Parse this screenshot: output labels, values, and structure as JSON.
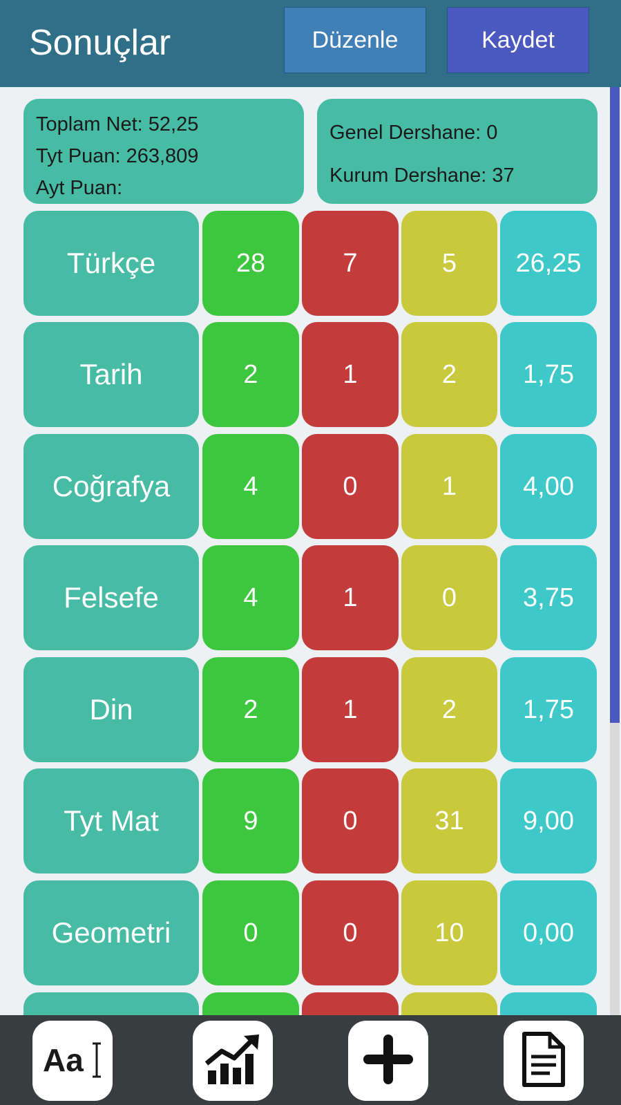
{
  "header": {
    "title": "Sonuçlar",
    "edit_label": "Düzenle",
    "save_label": "Kaydet"
  },
  "summary": {
    "toplam_net": "Toplam Net: 52,25",
    "tyt_puan": "Tyt Puan: 263,809",
    "ayt_puan": "Ayt Puan:",
    "genel_dershane": "Genel Dershane: 0",
    "kurum_dershane": "Kurum Dershane: 37"
  },
  "rows": [
    {
      "name": "Türkçe",
      "d": "28",
      "y": "7",
      "b": "5",
      "net": "26,25"
    },
    {
      "name": "Tarih",
      "d": "2",
      "y": "1",
      "b": "2",
      "net": "1,75"
    },
    {
      "name": "Coğrafya",
      "d": "4",
      "y": "0",
      "b": "1",
      "net": "4,00"
    },
    {
      "name": "Felsefe",
      "d": "4",
      "y": "1",
      "b": "0",
      "net": "3,75"
    },
    {
      "name": "Din",
      "d": "2",
      "y": "1",
      "b": "2",
      "net": "1,75"
    },
    {
      "name": "Tyt Mat",
      "d": "9",
      "y": "0",
      "b": "31",
      "net": "9,00"
    },
    {
      "name": "Geometri",
      "d": "0",
      "y": "0",
      "b": "10",
      "net": "0,00"
    },
    {
      "name": "",
      "d": "",
      "y": "",
      "b": "",
      "net": ""
    }
  ],
  "colors": {
    "header": "#2f6f87",
    "edit_button": "#4080b6",
    "save_button": "#4a58c0",
    "name_cell": "#48bba5",
    "dogru": "#3ec63e",
    "yanlis": "#c43b3b",
    "bos": "#c8c93c",
    "net": "#3ec8c8",
    "bottom_bar": "#383d40"
  },
  "bottom_nav": [
    {
      "icon": "font-text-icon",
      "glyph": "Aa"
    },
    {
      "icon": "chart-growth-icon"
    },
    {
      "icon": "plus-icon"
    },
    {
      "icon": "document-icon"
    }
  ]
}
